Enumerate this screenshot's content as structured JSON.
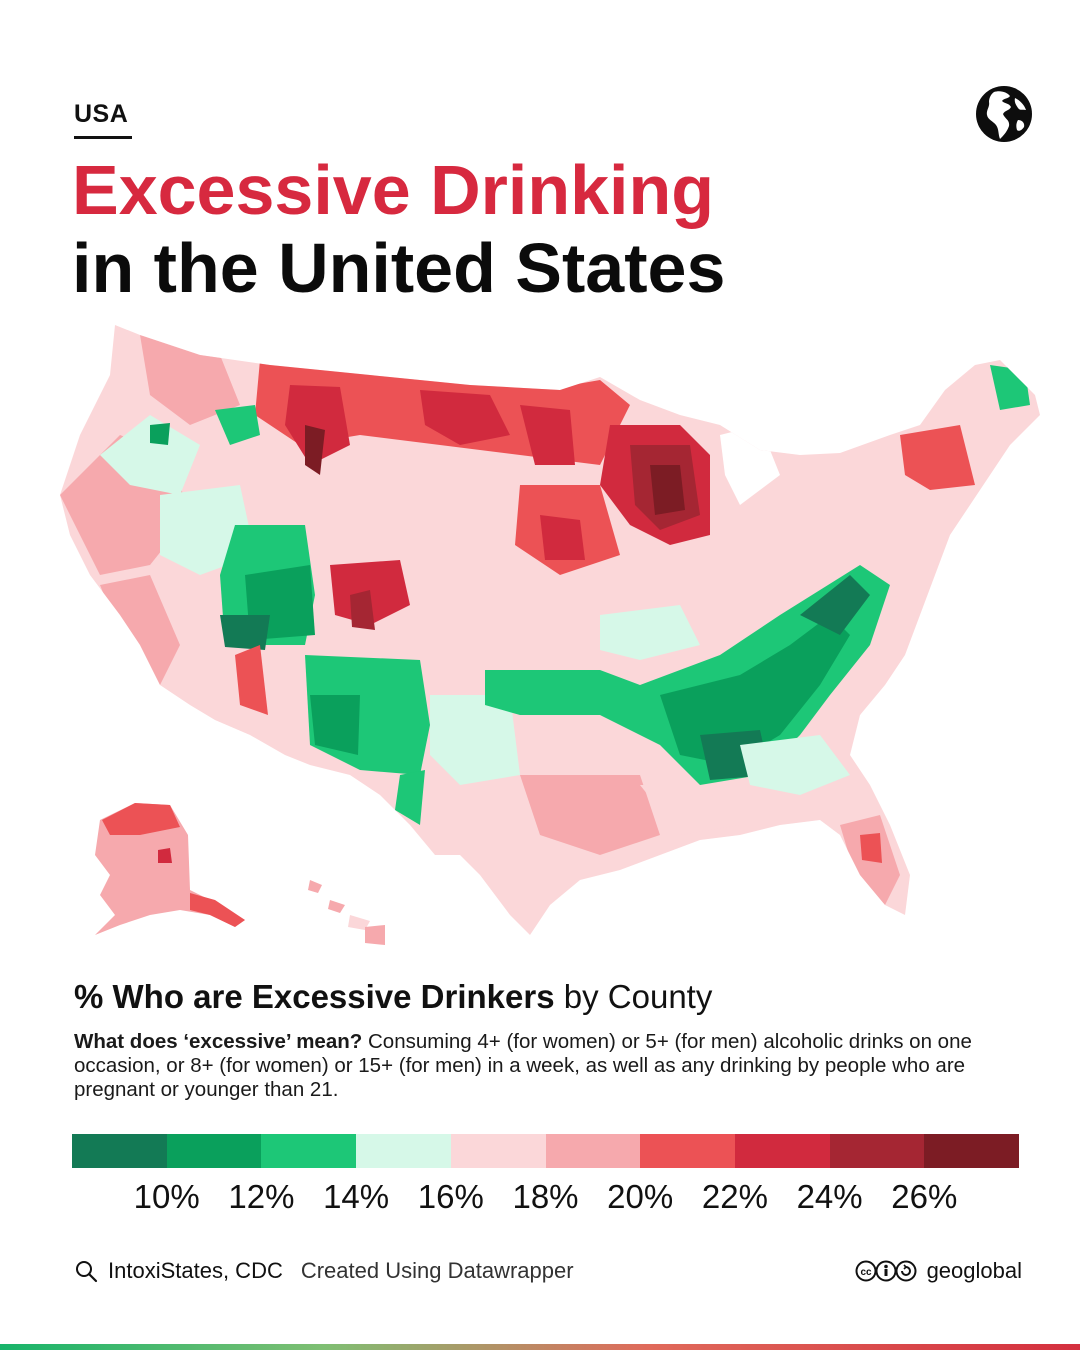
{
  "header": {
    "kicker": "USA",
    "title_line1": "Excessive Drinking",
    "title_line2": "in the United States",
    "title_color": "#d7293f",
    "logo_icon": "globe-americas-icon"
  },
  "map": {
    "subject": "united-states-county-choropleth",
    "colors": {
      "dark_green": "#137a55",
      "green": "#0aa05c",
      "light_green": "#1dc777",
      "mint": "#d6f8e8",
      "pale_pink": "#fbd7d9",
      "pink": "#f6a9ad",
      "red": "#ec5255",
      "crimson": "#d12a3e",
      "dark_red": "#a52633",
      "maroon": "#7c1c24"
    }
  },
  "subtitle": {
    "bold": "% Who are Excessive Drinkers",
    "regular": "by County"
  },
  "definition": {
    "question": "What does ‘excessive’ mean?",
    "answer": "Consuming 4+ (for women) or 5+ (for men) alcoholic drinks on one occasion, or 8+ (for women) or 15+ (for men) in a week, as well as any drinking by people who are pregnant or younger than 21."
  },
  "legend": {
    "colors": [
      "#137a55",
      "#0aa05c",
      "#1dc777",
      "#d6f8e8",
      "#fbd7d9",
      "#f6a9ad",
      "#ec5255",
      "#d12a3e",
      "#a52633",
      "#7c1c24"
    ],
    "ticks": [
      "10%",
      "12%",
      "14%",
      "16%",
      "18%",
      "20%",
      "22%",
      "24%",
      "26%"
    ]
  },
  "footer": {
    "source_icon": "search-icon",
    "source": "IntoxiStates, CDC",
    "credit": "Created Using Datawrapper",
    "license_icon": "creative-commons-icon",
    "brand": "geoglobal"
  }
}
